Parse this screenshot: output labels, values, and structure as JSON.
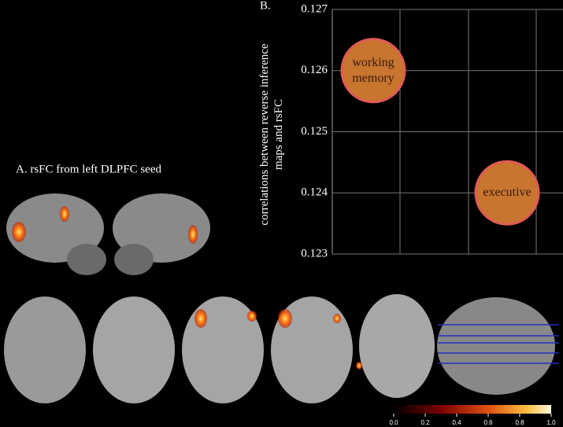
{
  "panel_a_label": "A.  rsFC from left DLPFC seed",
  "panel_b_label": "B.",
  "chart_data": {
    "type": "bubble",
    "ylabel": "correlations between reverse inference maps and rsFC",
    "categories": [
      "working memory",
      "executive"
    ],
    "values": [
      0.126,
      0.124
    ],
    "color": "#c8752f",
    "edge_color": "#e05a55",
    "ylim": [
      0.123,
      0.127
    ],
    "yticks": [
      0.123,
      0.124,
      0.125,
      0.126,
      0.127
    ],
    "grid": true
  },
  "colorbar": {
    "lim": [
      0,
      1
    ],
    "ticks": [
      {
        "value": 0,
        "label": "0.0"
      },
      {
        "value": 0.2,
        "label": "0.2"
      },
      {
        "value": 0.4,
        "label": "0.4"
      },
      {
        "value": 0.6,
        "label": "0.6"
      },
      {
        "value": 0.8,
        "label": "0.8"
      },
      {
        "value": 1,
        "label": "1.0"
      }
    ]
  }
}
